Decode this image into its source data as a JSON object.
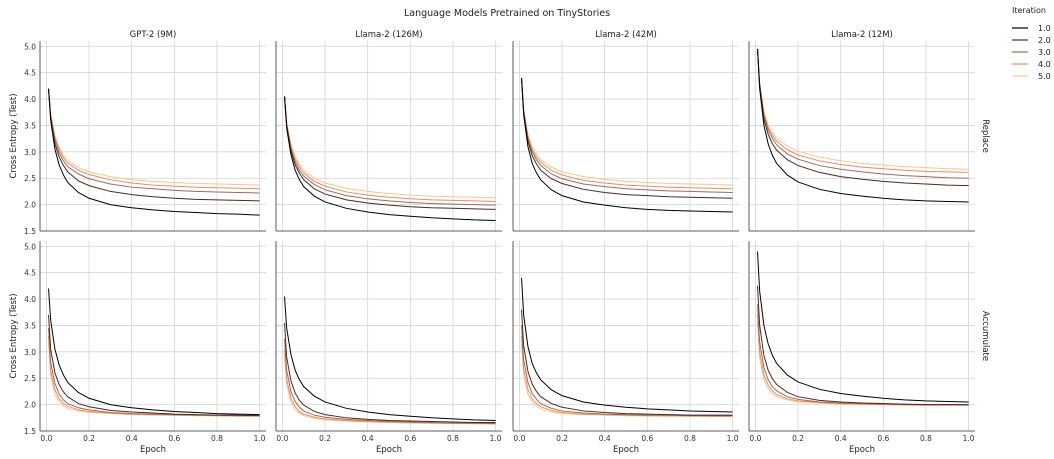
{
  "title": "Language Models Pretrained on TinyStories",
  "chart_data": {
    "type": "line",
    "xlabel": "Epoch",
    "ylabel": "Cross Entropy (Test)",
    "xlim": [
      -0.03,
      1.03
    ],
    "ylim": [
      1.5,
      5.1
    ],
    "xticks": [
      "0.0",
      "0.2",
      "0.4",
      "0.6",
      "0.8",
      "1.0"
    ],
    "yticks": [
      "1.5",
      "2.0",
      "2.5",
      "3.0",
      "3.5",
      "4.0",
      "4.5",
      "5.0"
    ],
    "grid": true,
    "columns": [
      "GPT-2 (9M)",
      "Llama-2 (126M)",
      "Llama-2 (42M)",
      "Llama-2 (12M)"
    ],
    "rows": [
      "Replace",
      "Accumulate"
    ],
    "legend": {
      "title": "Iteration",
      "position": "top-right",
      "entries": [
        "1.0",
        "2.0",
        "3.0",
        "4.0",
        "5.0"
      ]
    },
    "colors": [
      "#000000",
      "#4a2b22",
      "#9b6b5f",
      "#f08a60",
      "#f5c78e"
    ],
    "x": [
      0.01,
      0.02,
      0.04,
      0.06,
      0.08,
      0.1,
      0.15,
      0.2,
      0.3,
      0.4,
      0.5,
      0.6,
      0.7,
      0.8,
      0.9,
      1.0
    ],
    "panels": [
      {
        "row": "Replace",
        "column": "GPT-2 (9M)",
        "series": [
          {
            "name": "1.0",
            "values": [
              4.2,
              3.6,
              3.05,
              2.75,
              2.56,
              2.42,
              2.23,
              2.12,
              2.0,
              1.94,
              1.9,
              1.87,
              1.85,
              1.83,
              1.82,
              1.8
            ]
          },
          {
            "name": "2.0",
            "values": [
              4.2,
              3.65,
              3.15,
              2.9,
              2.74,
              2.62,
              2.45,
              2.36,
              2.25,
              2.19,
              2.15,
              2.12,
              2.1,
              2.09,
              2.08,
              2.07
            ]
          },
          {
            "name": "3.0",
            "values": [
              4.2,
              3.68,
              3.22,
              2.98,
              2.83,
              2.72,
              2.58,
              2.49,
              2.39,
              2.33,
              2.3,
              2.27,
              2.25,
              2.24,
              2.23,
              2.22
            ]
          },
          {
            "name": "4.0",
            "values": [
              4.2,
              3.7,
              3.27,
              3.04,
              2.89,
              2.79,
              2.65,
              2.57,
              2.47,
              2.41,
              2.37,
              2.35,
              2.33,
              2.32,
              2.31,
              2.3
            ]
          },
          {
            "name": "5.0",
            "values": [
              4.2,
              3.72,
              3.3,
              3.08,
              2.94,
              2.84,
              2.7,
              2.62,
              2.53,
              2.47,
              2.44,
              2.42,
              2.4,
              2.39,
              2.38,
              2.37
            ]
          }
        ]
      },
      {
        "row": "Replace",
        "column": "Llama-2 (126M)",
        "series": [
          {
            "name": "1.0",
            "values": [
              4.05,
              3.45,
              2.95,
              2.65,
              2.47,
              2.34,
              2.16,
              2.05,
              1.93,
              1.86,
              1.81,
              1.78,
              1.75,
              1.73,
              1.71,
              1.7
            ]
          },
          {
            "name": "2.0",
            "values": [
              4.05,
              3.5,
              3.02,
              2.75,
              2.59,
              2.47,
              2.3,
              2.2,
              2.09,
              2.03,
              1.99,
              1.96,
              1.94,
              1.93,
              1.92,
              1.91
            ]
          },
          {
            "name": "3.0",
            "values": [
              4.05,
              3.52,
              3.06,
              2.81,
              2.65,
              2.54,
              2.38,
              2.28,
              2.17,
              2.11,
              2.07,
              2.04,
              2.02,
              2.01,
              2.0,
              1.99
            ]
          },
          {
            "name": "4.0",
            "values": [
              4.05,
              3.54,
              3.1,
              2.86,
              2.71,
              2.6,
              2.44,
              2.35,
              2.24,
              2.18,
              2.14,
              2.11,
              2.09,
              2.08,
              2.07,
              2.06
            ]
          },
          {
            "name": "5.0",
            "values": [
              4.05,
              3.56,
              3.14,
              2.91,
              2.76,
              2.65,
              2.5,
              2.41,
              2.31,
              2.25,
              2.21,
              2.18,
              2.16,
              2.15,
              2.14,
              2.13
            ]
          }
        ]
      },
      {
        "row": "Replace",
        "column": "Llama-2 (42M)",
        "series": [
          {
            "name": "1.0",
            "values": [
              4.4,
              3.7,
              3.1,
              2.78,
              2.6,
              2.47,
              2.28,
              2.17,
              2.05,
              1.99,
              1.94,
              1.91,
              1.89,
              1.88,
              1.87,
              1.86
            ]
          },
          {
            "name": "2.0",
            "values": [
              4.4,
              3.75,
              3.2,
              2.93,
              2.77,
              2.65,
              2.49,
              2.4,
              2.29,
              2.23,
              2.19,
              2.17,
              2.15,
              2.14,
              2.13,
              2.12
            ]
          },
          {
            "name": "3.0",
            "values": [
              4.4,
              3.77,
              3.25,
              3.0,
              2.85,
              2.74,
              2.58,
              2.49,
              2.39,
              2.34,
              2.3,
              2.28,
              2.26,
              2.25,
              2.24,
              2.23
            ]
          },
          {
            "name": "4.0",
            "values": [
              4.4,
              3.79,
              3.29,
              3.05,
              2.9,
              2.8,
              2.65,
              2.56,
              2.46,
              2.41,
              2.37,
              2.35,
              2.33,
              2.32,
              2.31,
              2.3
            ]
          },
          {
            "name": "5.0",
            "values": [
              4.4,
              3.81,
              3.33,
              3.09,
              2.95,
              2.85,
              2.71,
              2.62,
              2.53,
              2.48,
              2.44,
              2.42,
              2.4,
              2.39,
              2.38,
              2.37
            ]
          }
        ]
      },
      {
        "row": "Replace",
        "column": "Llama-2 (12M)",
        "series": [
          {
            "name": "1.0",
            "values": [
              4.95,
              4.2,
              3.5,
              3.15,
              2.93,
              2.78,
              2.56,
              2.43,
              2.29,
              2.21,
              2.16,
              2.12,
              2.09,
              2.07,
              2.06,
              2.05
            ]
          },
          {
            "name": "2.0",
            "values": [
              4.95,
              4.25,
              3.62,
              3.33,
              3.15,
              3.03,
              2.85,
              2.74,
              2.61,
              2.53,
              2.48,
              2.44,
              2.41,
              2.39,
              2.37,
              2.36
            ]
          },
          {
            "name": "3.0",
            "values": [
              4.95,
              4.28,
              3.68,
              3.41,
              3.25,
              3.13,
              2.96,
              2.86,
              2.74,
              2.67,
              2.62,
              2.58,
              2.55,
              2.53,
              2.51,
              2.5
            ]
          },
          {
            "name": "4.0",
            "values": [
              4.95,
              4.3,
              3.72,
              3.46,
              3.31,
              3.2,
              3.04,
              2.94,
              2.83,
              2.76,
              2.71,
              2.68,
              2.65,
              2.63,
              2.62,
              2.61
            ]
          },
          {
            "name": "5.0",
            "values": [
              4.95,
              4.32,
              3.76,
              3.51,
              3.36,
              3.26,
              3.11,
              3.01,
              2.9,
              2.83,
              2.78,
              2.75,
              2.72,
              2.7,
              2.68,
              2.67
            ]
          }
        ]
      },
      {
        "row": "Accumulate",
        "column": "GPT-2 (9M)",
        "series": [
          {
            "name": "1.0",
            "values": [
              4.2,
              3.6,
              3.05,
              2.75,
              2.56,
              2.42,
              2.23,
              2.12,
              2.0,
              1.94,
              1.9,
              1.87,
              1.85,
              1.83,
              1.82,
              1.81
            ]
          },
          {
            "name": "2.0",
            "values": [
              3.7,
              3.05,
              2.6,
              2.38,
              2.24,
              2.15,
              2.02,
              1.96,
              1.89,
              1.86,
              1.84,
              1.82,
              1.81,
              1.8,
              1.8,
              1.79
            ]
          },
          {
            "name": "3.0",
            "values": [
              3.45,
              2.8,
              2.4,
              2.2,
              2.09,
              2.02,
              1.94,
              1.9,
              1.85,
              1.83,
              1.82,
              1.81,
              1.8,
              1.8,
              1.79,
              1.79
            ]
          },
          {
            "name": "4.0",
            "values": [
              3.3,
              2.65,
              2.28,
              2.11,
              2.02,
              1.97,
              1.9,
              1.87,
              1.84,
              1.82,
              1.81,
              1.8,
              1.8,
              1.79,
              1.79,
              1.79
            ]
          },
          {
            "name": "5.0",
            "values": [
              3.2,
              2.55,
              2.2,
              2.05,
              1.98,
              1.93,
              1.88,
              1.85,
              1.83,
              1.81,
              1.8,
              1.8,
              1.79,
              1.79,
              1.78,
              1.78
            ]
          }
        ]
      },
      {
        "row": "Accumulate",
        "column": "Llama-2 (126M)",
        "series": [
          {
            "name": "1.0",
            "values": [
              4.05,
              3.45,
              2.95,
              2.65,
              2.47,
              2.34,
              2.16,
              2.05,
              1.93,
              1.86,
              1.81,
              1.78,
              1.75,
              1.73,
              1.71,
              1.7
            ]
          },
          {
            "name": "2.0",
            "values": [
              3.55,
              2.9,
              2.45,
              2.22,
              2.08,
              1.99,
              1.87,
              1.81,
              1.75,
              1.72,
              1.7,
              1.69,
              1.68,
              1.67,
              1.66,
              1.66
            ]
          },
          {
            "name": "3.0",
            "values": [
              3.25,
              2.65,
              2.25,
              2.06,
              1.95,
              1.88,
              1.8,
              1.76,
              1.72,
              1.7,
              1.68,
              1.67,
              1.66,
              1.65,
              1.65,
              1.64
            ]
          },
          {
            "name": "4.0",
            "values": [
              3.05,
              2.48,
              2.12,
              1.96,
              1.87,
              1.82,
              1.76,
              1.73,
              1.7,
              1.68,
              1.67,
              1.66,
              1.65,
              1.65,
              1.64,
              1.64
            ]
          },
          {
            "name": "5.0",
            "values": [
              2.95,
              2.38,
              2.05,
              1.91,
              1.84,
              1.79,
              1.74,
              1.71,
              1.69,
              1.67,
              1.66,
              1.65,
              1.65,
              1.64,
              1.64,
              1.63
            ]
          }
        ]
      },
      {
        "row": "Accumulate",
        "column": "Llama-2 (42M)",
        "series": [
          {
            "name": "1.0",
            "values": [
              4.4,
              3.7,
              3.1,
              2.78,
              2.6,
              2.47,
              2.28,
              2.17,
              2.05,
              1.99,
              1.95,
              1.92,
              1.9,
              1.88,
              1.87,
              1.86
            ]
          },
          {
            "name": "2.0",
            "values": [
              3.8,
              3.12,
              2.63,
              2.39,
              2.25,
              2.15,
              2.02,
              1.95,
              1.88,
              1.85,
              1.83,
              1.82,
              1.81,
              1.8,
              1.8,
              1.8
            ]
          },
          {
            "name": "3.0",
            "values": [
              3.5,
              2.85,
              2.42,
              2.21,
              2.1,
              2.02,
              1.93,
              1.88,
              1.84,
              1.82,
              1.81,
              1.8,
              1.8,
              1.79,
              1.79,
              1.79
            ]
          },
          {
            "name": "4.0",
            "values": [
              3.3,
              2.68,
              2.29,
              2.11,
              2.02,
              1.96,
              1.89,
              1.85,
              1.82,
              1.81,
              1.8,
              1.79,
              1.79,
              1.79,
              1.78,
              1.78
            ]
          },
          {
            "name": "5.0",
            "values": [
              3.15,
              2.56,
              2.2,
              2.05,
              1.97,
              1.92,
              1.86,
              1.83,
              1.81,
              1.8,
              1.79,
              1.79,
              1.78,
              1.78,
              1.78,
              1.78
            ]
          }
        ]
      },
      {
        "row": "Accumulate",
        "column": "Llama-2 (12M)",
        "series": [
          {
            "name": "1.0",
            "values": [
              4.9,
              4.15,
              3.5,
              3.15,
              2.93,
              2.78,
              2.56,
              2.43,
              2.29,
              2.21,
              2.16,
              2.12,
              2.09,
              2.07,
              2.06,
              2.05
            ]
          },
          {
            "name": "2.0",
            "values": [
              4.25,
              3.5,
              2.93,
              2.65,
              2.49,
              2.38,
              2.23,
              2.15,
              2.08,
              2.05,
              2.03,
              2.02,
              2.01,
              2.0,
              2.0,
              2.0
            ]
          },
          {
            "name": "3.0",
            "values": [
              3.9,
              3.18,
              2.7,
              2.47,
              2.34,
              2.26,
              2.15,
              2.1,
              2.05,
              2.03,
              2.02,
              2.01,
              2.0,
              2.0,
              2.0,
              1.99
            ]
          },
          {
            "name": "4.0",
            "values": [
              3.7,
              3.0,
              2.56,
              2.37,
              2.26,
              2.19,
              2.11,
              2.07,
              2.04,
              2.02,
              2.01,
              2.0,
              2.0,
              1.99,
              1.99,
              1.99
            ]
          },
          {
            "name": "5.0",
            "values": [
              3.55,
              2.88,
              2.48,
              2.3,
              2.21,
              2.15,
              2.09,
              2.05,
              2.03,
              2.01,
              2.0,
              2.0,
              1.99,
              1.99,
              1.99,
              1.99
            ]
          }
        ]
      }
    ]
  }
}
